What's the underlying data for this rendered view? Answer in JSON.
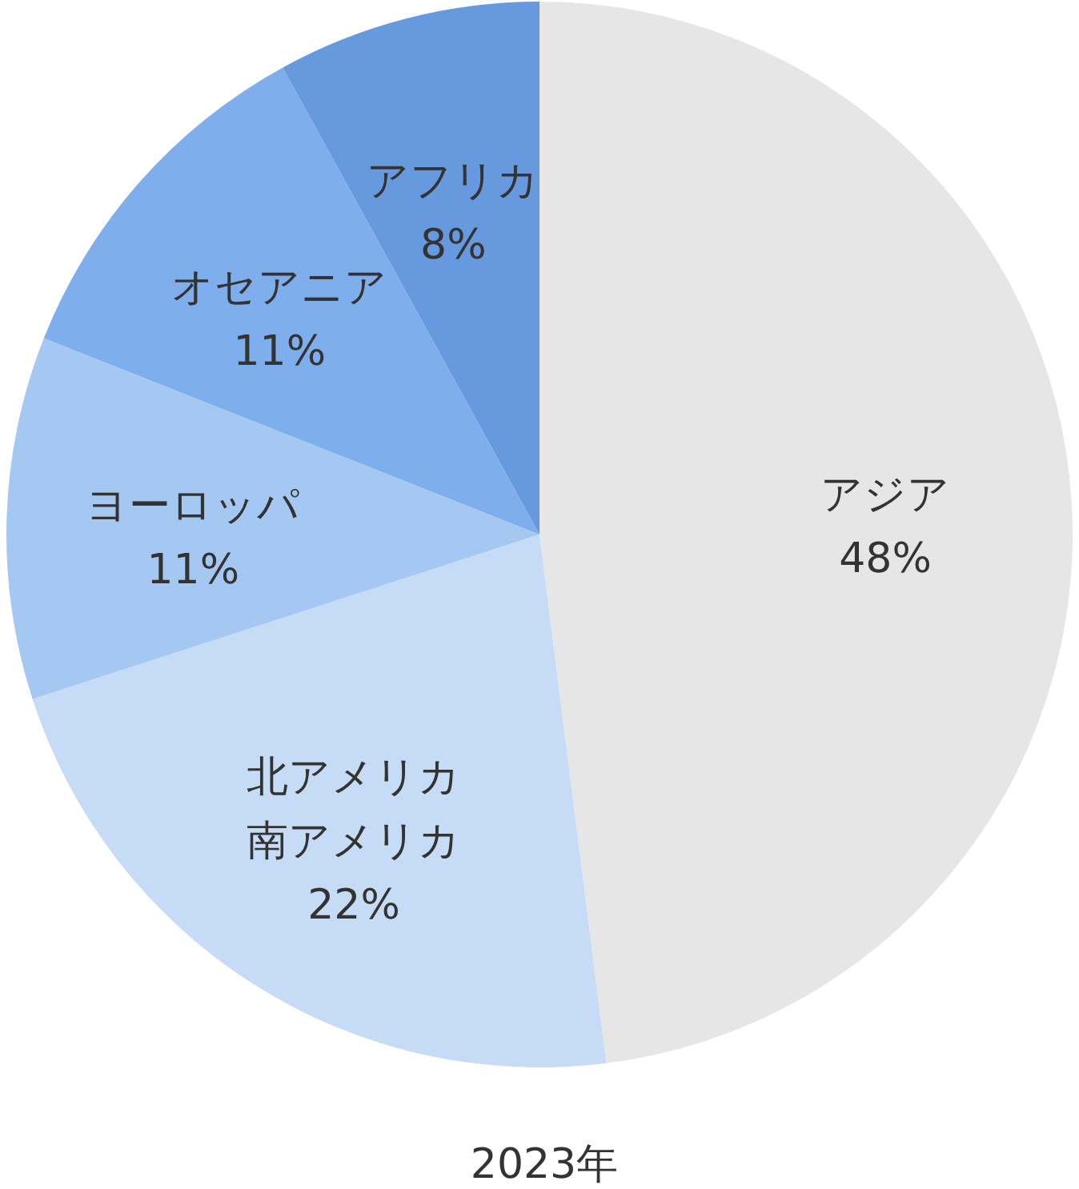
{
  "chart_data": {
    "type": "pie",
    "title": "2023年",
    "categories": [
      "アジア",
      "北アメリカ南アメリカ",
      "ヨーロッパ",
      "オセアニア",
      "アフリカ"
    ],
    "values": [
      48,
      22,
      11,
      11,
      8
    ],
    "colors": [
      "#e6e6e6",
      "#c6dcf6",
      "#a5c8f3",
      "#7eaeec",
      "#6699dd"
    ],
    "value_labels": [
      "48%",
      "22%",
      "11%",
      "11%",
      "8%"
    ]
  }
}
